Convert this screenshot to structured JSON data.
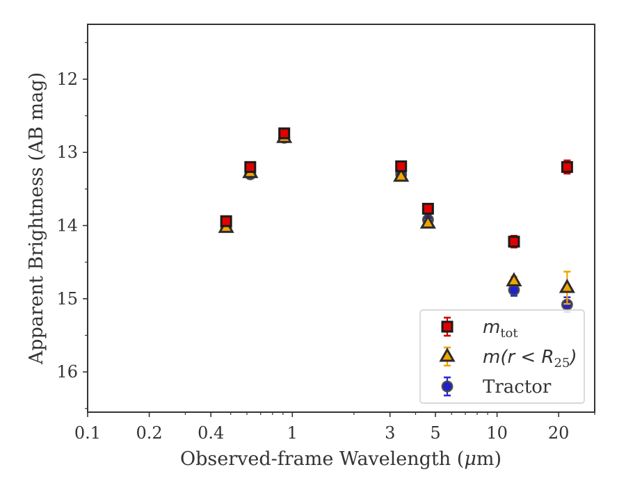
{
  "chart_data": {
    "type": "scatter",
    "xscale": "log",
    "xlim": [
      0.1,
      30
    ],
    "ylim": [
      16.55,
      11.25
    ],
    "y_inverted": true,
    "xlabel_parts": [
      "Observed-frame Wavelength (",
      "μ",
      "m)"
    ],
    "ylabel": "Apparent Brightness (AB mag)",
    "x_ticks": [
      {
        "value": 0.1,
        "label": "0.1"
      },
      {
        "value": 0.2,
        "label": "0.2"
      },
      {
        "value": 0.4,
        "label": "0.4"
      },
      {
        "value": 1,
        "label": "1"
      },
      {
        "value": 3,
        "label": "3"
      },
      {
        "value": 5,
        "label": "5"
      },
      {
        "value": 10,
        "label": "10"
      },
      {
        "value": 20,
        "label": "20"
      }
    ],
    "x_minor_ticks": [
      0.3,
      0.5,
      0.6,
      0.7,
      0.8,
      0.9,
      2,
      4,
      6,
      7,
      8,
      9,
      30
    ],
    "y_ticks": [
      {
        "value": 12,
        "label": "12"
      },
      {
        "value": 13,
        "label": "13"
      },
      {
        "value": 14,
        "label": "14"
      },
      {
        "value": 15,
        "label": "15"
      },
      {
        "value": 16,
        "label": "16"
      }
    ],
    "y_minor_ticks": [
      11.5,
      12.5,
      13.5,
      14.5,
      15.5,
      16.5
    ],
    "legend_position": "lower-right",
    "series": [
      {
        "key": "tractor",
        "name": "Tractor",
        "marker": "circle",
        "face": "#1f1fd6",
        "edge": "#404040",
        "errcolor": "#2a2adf",
        "points": [
          {
            "x": 0.475,
            "y": 14.02,
            "err": 0.04
          },
          {
            "x": 0.623,
            "y": 13.3,
            "err": 0.04
          },
          {
            "x": 0.913,
            "y": 12.8,
            "err": 0.04
          },
          {
            "x": 3.4,
            "y": 13.3,
            "err": 0.04
          },
          {
            "x": 4.6,
            "y": 13.92,
            "err": 0.06
          },
          {
            "x": 12.1,
            "y": 14.88,
            "err": 0.08
          },
          {
            "x": 22.0,
            "y": 15.08,
            "err": 0.1
          }
        ]
      },
      {
        "key": "aperture",
        "name": "m(r < R25)",
        "marker": "triangle",
        "face": "#f0a500",
        "edge": "#2b2b2b",
        "errcolor": "#f0a500",
        "points": [
          {
            "x": 0.475,
            "y": 14.03,
            "err": 0.03
          },
          {
            "x": 0.623,
            "y": 13.28,
            "err": 0.03
          },
          {
            "x": 0.913,
            "y": 12.8,
            "err": 0.03
          },
          {
            "x": 3.4,
            "y": 13.33,
            "err": 0.03
          },
          {
            "x": 4.6,
            "y": 13.97,
            "err": 0.05
          },
          {
            "x": 12.1,
            "y": 14.76,
            "err": 0.06
          },
          {
            "x": 22.0,
            "y": 14.85,
            "err": 0.22
          }
        ]
      },
      {
        "key": "total",
        "name": "m_tot",
        "marker": "square",
        "face": "#e10000",
        "edge": "#1a1a1a",
        "errcolor": "#d40000",
        "points": [
          {
            "x": 0.475,
            "y": 13.94,
            "err": 0.06
          },
          {
            "x": 0.623,
            "y": 13.2,
            "err": 0.06
          },
          {
            "x": 0.913,
            "y": 12.74,
            "err": 0.06
          },
          {
            "x": 3.4,
            "y": 13.19,
            "err": 0.06
          },
          {
            "x": 4.6,
            "y": 13.77,
            "err": 0.06
          },
          {
            "x": 12.1,
            "y": 14.22,
            "err": 0.08
          },
          {
            "x": 22.0,
            "y": 13.2,
            "err": 0.09
          }
        ]
      }
    ],
    "legend": [
      {
        "key": "total",
        "marker": "square",
        "face": "#e10000",
        "edge": "#1a1a1a",
        "errcolor": "#d40000",
        "math": "m",
        "sub": "tot"
      },
      {
        "key": "aperture",
        "marker": "triangle",
        "face": "#f0a500",
        "edge": "#2b2b2b",
        "errcolor": "#f0a500",
        "math": "m(r < R",
        "sub": "25",
        "after": ")"
      },
      {
        "key": "tractor",
        "marker": "circle",
        "face": "#1f1fd6",
        "edge": "#404040",
        "errcolor": "#2a2adf",
        "text": "Tractor"
      }
    ]
  }
}
